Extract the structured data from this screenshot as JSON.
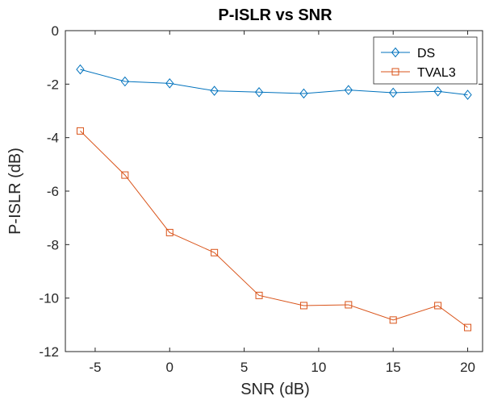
{
  "chart_data": {
    "type": "line",
    "title": "P-ISLR vs SNR",
    "xlabel": "SNR (dB)",
    "ylabel": "P-ISLR (dB)",
    "xlim": [
      -7,
      21
    ],
    "ylim": [
      -12,
      0
    ],
    "xticks": [
      -5,
      0,
      5,
      10,
      15,
      20
    ],
    "yticks": [
      0,
      -2,
      -4,
      -6,
      -8,
      -10,
      -12
    ],
    "grid": false,
    "legend_position": "top-right",
    "x": [
      -6,
      -3,
      0,
      3,
      6,
      9,
      12,
      15,
      18,
      20
    ],
    "series": [
      {
        "name": "DS",
        "color": "#0072BD",
        "marker": "diamond",
        "values": [
          -1.45,
          -1.9,
          -1.97,
          -2.25,
          -2.3,
          -2.35,
          -2.22,
          -2.32,
          -2.27,
          -2.4
        ]
      },
      {
        "name": "TVAL3",
        "color": "#D95319",
        "marker": "square",
        "values": [
          -3.75,
          -5.4,
          -7.55,
          -8.3,
          -9.9,
          -10.28,
          -10.25,
          -10.82,
          -10.28,
          -11.1
        ]
      }
    ]
  }
}
